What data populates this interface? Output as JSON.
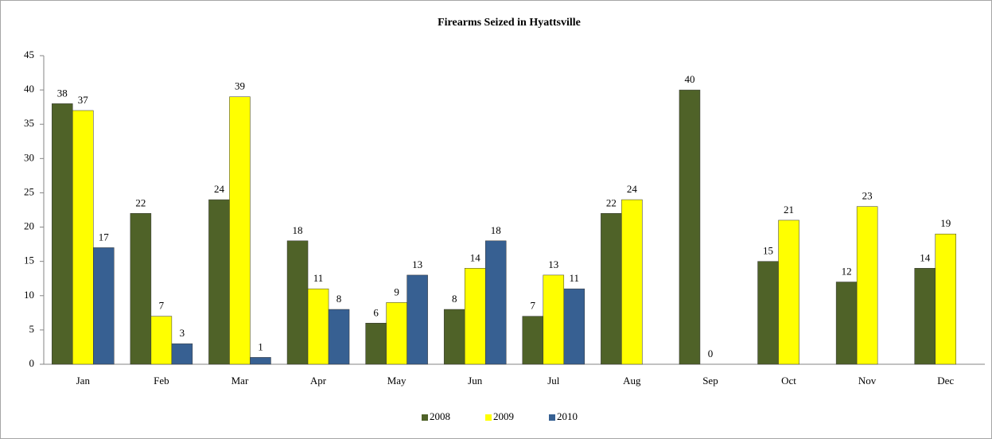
{
  "chart_data": {
    "type": "bar",
    "title": "Firearms Seized in Hyattsville",
    "categories": [
      "Jan",
      "Feb",
      "Mar",
      "Apr",
      "May",
      "Jun",
      "Jul",
      "Aug",
      "Sep",
      "Oct",
      "Nov",
      "Dec"
    ],
    "series": [
      {
        "name": "2008",
        "color": "#4f6228",
        "values": [
          38,
          22,
          24,
          18,
          6,
          8,
          7,
          22,
          40,
          15,
          12,
          14
        ]
      },
      {
        "name": "2009",
        "color": "#ffff00",
        "values": [
          37,
          7,
          39,
          11,
          9,
          14,
          13,
          24,
          0,
          21,
          23,
          19
        ]
      },
      {
        "name": "2010",
        "color": "#376092",
        "values": [
          17,
          3,
          1,
          8,
          13,
          18,
          11,
          null,
          null,
          null,
          null,
          null
        ]
      }
    ],
    "ylim": [
      0,
      45
    ],
    "yticks": [
      0,
      5,
      10,
      15,
      20,
      25,
      30,
      35,
      40,
      45
    ],
    "grid": false,
    "legend": "bottom"
  }
}
